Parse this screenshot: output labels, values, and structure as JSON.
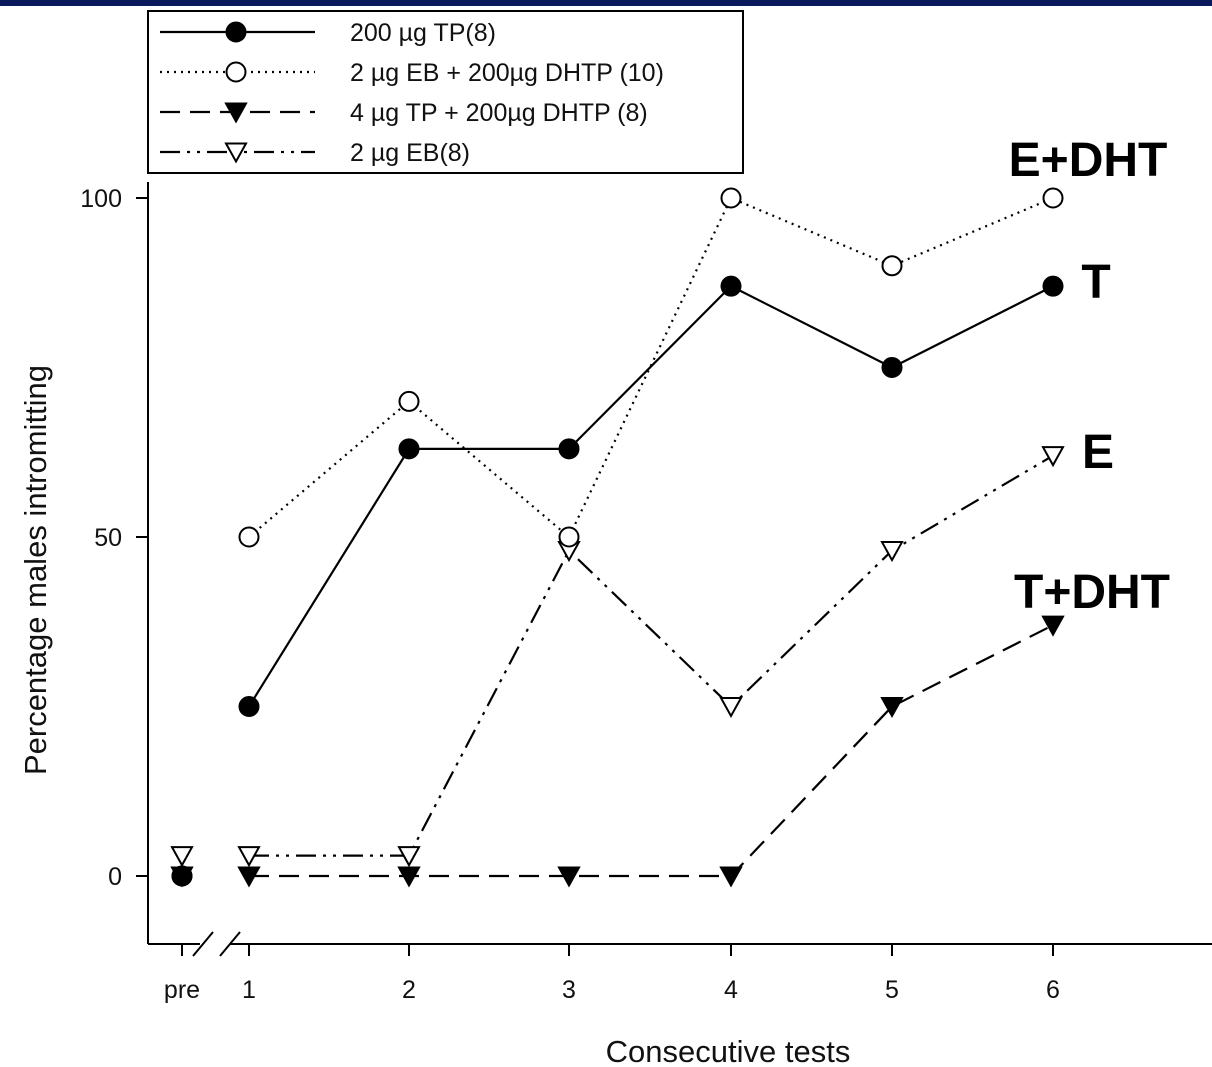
{
  "colors": {
    "top_bar": "#0b1a5c",
    "ink": "#000000"
  },
  "chart_data": {
    "type": "line",
    "categories": [
      "pre",
      "1",
      "2",
      "3",
      "4",
      "5",
      "6"
    ],
    "xlabel": "Consecutive tests",
    "ylabel": "Percentage males intromitting",
    "ylim": [
      -10,
      100
    ],
    "yticks": [
      "0",
      "50",
      "100"
    ],
    "grid": false,
    "legend_position": "top-left",
    "series": [
      {
        "name": "200 µg TP(8)",
        "marker": "filled-circle",
        "line": "solid",
        "values": [
          0,
          25,
          63,
          63,
          87,
          75,
          87
        ]
      },
      {
        "name": "2 µg EB + 200µg DHTP (10)",
        "marker": "open-circle",
        "line": "dotted",
        "values": [
          0,
          50,
          70,
          50,
          100,
          90,
          100
        ]
      },
      {
        "name": "4 µg TP + 200µg DHTP (8)",
        "marker": "filled-triangle-down",
        "line": "dashed",
        "values": [
          0,
          0,
          0,
          0,
          0,
          25,
          37
        ]
      },
      {
        "name": "2 µg EB(8)",
        "marker": "open-triangle-down",
        "line": "dash-dot-dot",
        "values": [
          3,
          3,
          3,
          48,
          25,
          48,
          62
        ]
      }
    ],
    "annotations": [
      {
        "text": "E+DHT",
        "x": "6",
        "y": 100
      },
      {
        "text": "T",
        "x": "6",
        "y": 87
      },
      {
        "text": "E",
        "x": "6",
        "y": 62
      },
      {
        "text": "T+DHT",
        "x": "6",
        "y": 37
      }
    ]
  }
}
